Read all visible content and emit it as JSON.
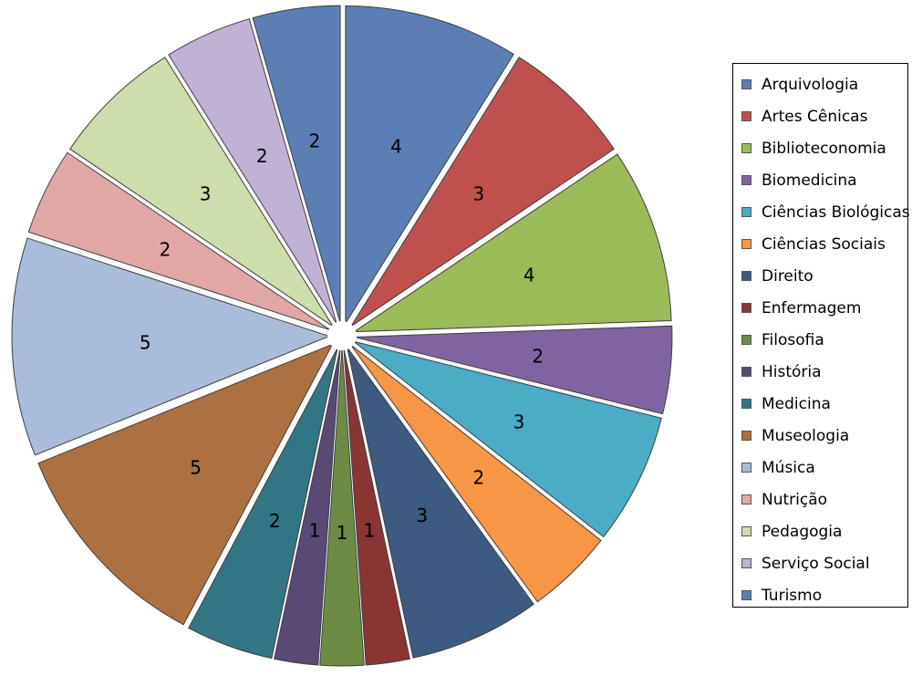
{
  "chart_data": {
    "type": "pie",
    "title": "",
    "exploded": true,
    "legend_position": "right",
    "categories": [
      "Arquivologia",
      "Artes Cênicas",
      "Biblioteconomia",
      "Biomedicina",
      "Ciências Biológicas",
      "Ciências Sociais",
      "Direito",
      "Enfermagem",
      "Filosofia",
      "História",
      "Medicina",
      "Museologia",
      "Música",
      "Nutrição",
      "Pedagogia",
      "Serviço Social",
      "Turismo"
    ],
    "values": [
      4,
      3,
      4,
      2,
      3,
      2,
      3,
      1,
      1,
      1,
      2,
      5,
      5,
      2,
      3,
      2,
      2
    ],
    "colors": [
      "#5B7FB5",
      "#C0504D",
      "#9BBB59",
      "#8064A2",
      "#4BACC6",
      "#F79646",
      "#3D5A80",
      "#8B3434",
      "#6E8B43",
      "#584A73",
      "#327686",
      "#AD7040",
      "#A9BCDA",
      "#E1A7A6",
      "#CDDDAC",
      "#BFB2D4",
      "#5B7FB5"
    ]
  }
}
